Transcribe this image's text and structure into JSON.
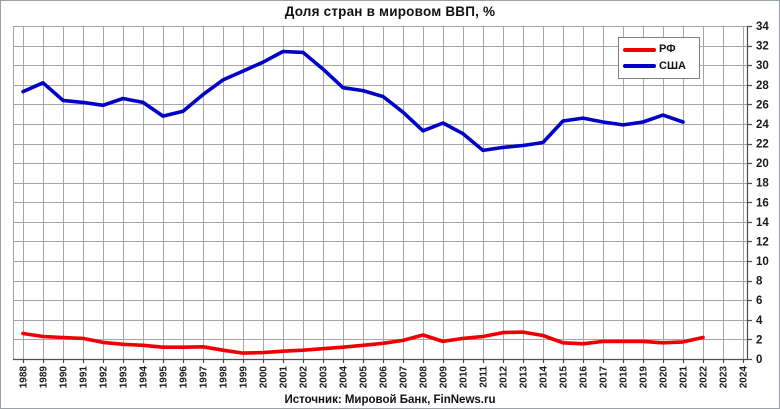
{
  "chart_data": {
    "type": "line",
    "title": "Доля стран в мировом ВВП, %",
    "source": "Источник: Мировой Банк, FinNews.ru",
    "categories": [
      1988,
      1989,
      1990,
      1991,
      1992,
      1993,
      1994,
      1995,
      1996,
      1997,
      1998,
      1999,
      2000,
      2001,
      2002,
      2003,
      2004,
      2005,
      2006,
      2007,
      2008,
      2009,
      2010,
      2011,
      2012,
      2013,
      2014,
      2015,
      2016,
      2017,
      2018,
      2019,
      2020,
      2021,
      2022,
      2023,
      2024
    ],
    "series": [
      {
        "name": "РФ",
        "color": "#ee0000",
        "values": [
          2.6,
          2.3,
          2.2,
          2.1,
          1.7,
          1.5,
          1.4,
          1.2,
          1.2,
          1.25,
          0.9,
          0.6,
          0.65,
          0.8,
          0.9,
          1.05,
          1.2,
          1.4,
          1.6,
          1.9,
          2.45,
          1.8,
          2.1,
          2.3,
          2.7,
          2.75,
          2.4,
          1.65,
          1.55,
          1.8,
          1.8,
          1.8,
          1.65,
          1.75,
          2.2,
          null,
          null
        ]
      },
      {
        "name": "США",
        "color": "#0000c8",
        "values": [
          27.3,
          28.2,
          26.4,
          26.2,
          25.9,
          26.6,
          26.2,
          24.8,
          25.3,
          27.0,
          28.5,
          29.4,
          30.3,
          31.4,
          31.3,
          29.6,
          27.7,
          27.4,
          26.8,
          25.2,
          23.3,
          24.1,
          23.0,
          21.3,
          21.6,
          21.8,
          22.1,
          24.3,
          24.6,
          24.2,
          23.9,
          24.2,
          24.9,
          24.2,
          null,
          null,
          null
        ]
      }
    ],
    "ylim": [
      0,
      34
    ],
    "ytick_step": 2,
    "yticks": [
      0,
      2,
      4,
      6,
      8,
      10,
      12,
      14,
      16,
      18,
      20,
      22,
      24,
      26,
      28,
      30,
      32,
      34
    ],
    "value_axis_side": "right",
    "grid": true,
    "legend_position": "top-right",
    "colors": {
      "grid": "#a6a6a6",
      "axis": "#4d4d4d",
      "tick_label": "#1a1a1a"
    }
  }
}
